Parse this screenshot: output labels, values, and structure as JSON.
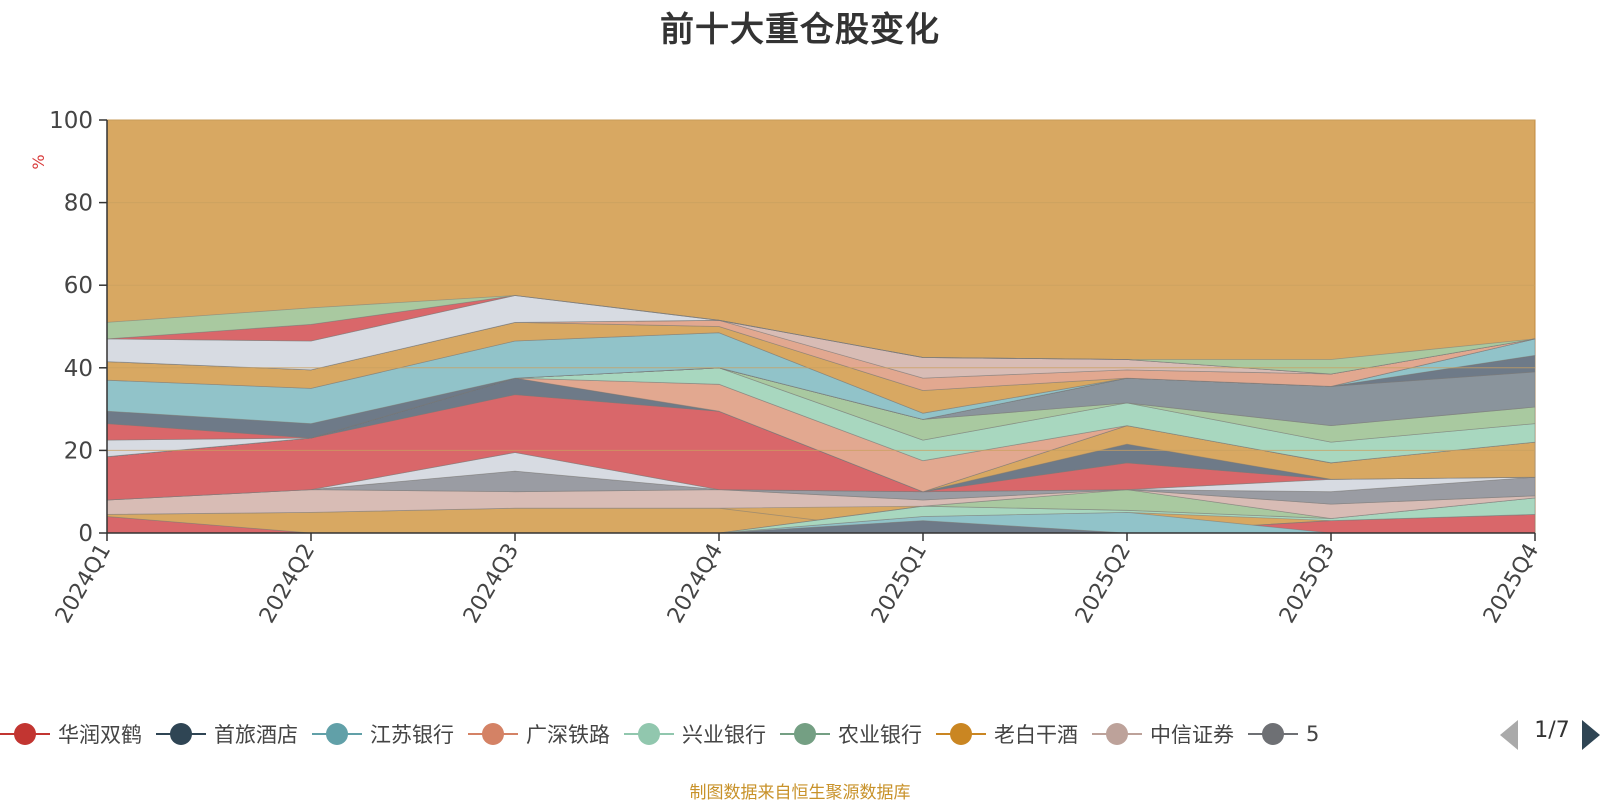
{
  "title": "前十大重仓股变化",
  "source_note": "制图数据来自恒生聚源数据库",
  "pager": {
    "text": "1/7"
  },
  "colors": {
    "background_area": "#d8a862",
    "axis": "#333333",
    "grid": "#c9a060",
    "ylabel": "#d83a3a"
  },
  "legend": [
    {
      "name": "华润双鹤",
      "color": "#c23531"
    },
    {
      "name": "首旅酒店",
      "color": "#2f4554"
    },
    {
      "name": "江苏银行",
      "color": "#61a0a8"
    },
    {
      "name": "广深铁路",
      "color": "#d48265"
    },
    {
      "name": "兴业银行",
      "color": "#91c7ae"
    },
    {
      "name": "农业银行",
      "color": "#749f83"
    },
    {
      "name": "老白干酒",
      "color": "#ca8622"
    },
    {
      "name": "中信证券",
      "color": "#bda29a"
    },
    {
      "name": "5",
      "color": "#6e7074"
    }
  ],
  "chart_data": {
    "type": "area",
    "title": "前十大重仓股变化",
    "xlabel": "",
    "ylabel": "%",
    "ylim": [
      0,
      100
    ],
    "yticks": [
      "0",
      "20",
      "40",
      "60",
      "80",
      "100"
    ],
    "categories": [
      "2024Q1",
      "2024Q2",
      "2024Q3",
      "2024Q4",
      "2025Q1",
      "2025Q2",
      "2025Q3",
      "2025Q4"
    ],
    "grid": true,
    "legend_position": "bottom",
    "bands": [
      {
        "color": "#d9676a",
        "lower": [
          0,
          0,
          0,
          0,
          0,
          0,
          0,
          0
        ],
        "upper": [
          4,
          0,
          0,
          0,
          0,
          0,
          3,
          4.5
        ]
      },
      {
        "color": "#d8a862",
        "lower": [
          4,
          0,
          0,
          0,
          0,
          0,
          3,
          4.5
        ],
        "upper": [
          4.5,
          5,
          6,
          6,
          0,
          0,
          3,
          4.5
        ]
      },
      {
        "color": "#6e7a88",
        "lower": [
          0,
          0,
          0,
          0,
          0,
          0,
          0,
          0
        ],
        "upper": [
          0,
          0,
          0,
          0,
          3,
          0,
          0,
          0
        ]
      },
      {
        "color": "#91c3c9",
        "lower": [
          0,
          0,
          0,
          0,
          3,
          0,
          0,
          0
        ],
        "upper": [
          0,
          0,
          0,
          0,
          4,
          5,
          0,
          0
        ]
      },
      {
        "color": "#a8d7bf",
        "lower": [
          0,
          0,
          0,
          0,
          4,
          5,
          3,
          4.5
        ],
        "upper": [
          0,
          0,
          0,
          0,
          6.5,
          5.5,
          3.5,
          8.5
        ]
      },
      {
        "color": "#a9c9a0",
        "lower": [
          0,
          0,
          0,
          0,
          6.5,
          5.5,
          3.5,
          8.5
        ],
        "upper": [
          0,
          0,
          0,
          0,
          6.5,
          10.5,
          3.5,
          8.5
        ]
      },
      {
        "color": "#d8bcb5",
        "lower": [
          4.5,
          5,
          6,
          6,
          6.5,
          10.5,
          3.5,
          8.5
        ],
        "upper": [
          8,
          10.5,
          10,
          10.5,
          8,
          10.5,
          7,
          9
        ]
      },
      {
        "color": "#9a9ca3",
        "lower": [
          8,
          10.5,
          10,
          10.5,
          8,
          10.5,
          7,
          9
        ],
        "upper": [
          8,
          10.5,
          15,
          10.5,
          10,
          10.5,
          10,
          13.5
        ]
      },
      {
        "color": "#d7dbe2",
        "lower": [
          8,
          10.5,
          15,
          10.5,
          10,
          10.5,
          10,
          13.5
        ],
        "upper": [
          8,
          10.5,
          19.5,
          10.5,
          10,
          10.5,
          13,
          13.5
        ]
      },
      {
        "color": "#d9676a",
        "lower": [
          8,
          10.5,
          19.5,
          10.5,
          10,
          10.5,
          13,
          13.5
        ],
        "upper": [
          18.5,
          23,
          33.5,
          29.5,
          10,
          17,
          13,
          13.5
        ]
      },
      {
        "color": "#6e7a88",
        "lower": [
          18.5,
          23,
          33.5,
          29.5,
          10,
          17,
          13,
          13.5
        ],
        "upper": [
          18.5,
          23,
          37.5,
          29.5,
          10,
          21.5,
          13,
          13.5
        ]
      },
      {
        "color": "#d8a862",
        "lower": [
          18.5,
          23,
          37.5,
          29.5,
          10,
          21.5,
          13,
          13.5
        ],
        "upper": [
          18.5,
          23,
          37.5,
          29.5,
          10,
          26,
          17,
          22
        ]
      },
      {
        "color": "#91c3c9",
        "lower": [
          18.5,
          23,
          37.5,
          29.5,
          10,
          26,
          17,
          22
        ],
        "upper": [
          18.5,
          23,
          37.5,
          29.5,
          10,
          26,
          17,
          22
        ]
      },
      {
        "color": "#e2a890",
        "lower": [
          18.5,
          23,
          37.5,
          29.5,
          10,
          26,
          17,
          22
        ],
        "upper": [
          18.5,
          23,
          37.5,
          36,
          17.5,
          26,
          17,
          22
        ]
      },
      {
        "color": "#a8d7bf",
        "lower": [
          18.5,
          23,
          37.5,
          36,
          17.5,
          26,
          17,
          22
        ],
        "upper": [
          18.5,
          23,
          37.5,
          40,
          22.5,
          31.5,
          22,
          26.5
        ]
      },
      {
        "color": "#a9c9a0",
        "lower": [
          18.5,
          23,
          37.5,
          40,
          22.5,
          31.5,
          22,
          26.5
        ],
        "upper": [
          18.5,
          23,
          37.5,
          40,
          27.5,
          31.5,
          26,
          30.5
        ]
      },
      {
        "color": "#8a949c",
        "lower": [
          18.5,
          23,
          37.5,
          40,
          27.5,
          31.5,
          26,
          30.5
        ],
        "upper": [
          18.5,
          23,
          37.5,
          40,
          27.5,
          37.5,
          35.5,
          39
        ]
      },
      {
        "color": "#6e7a88",
        "lower": [
          18.5,
          23,
          37.5,
          40,
          27.5,
          37.5,
          35.5,
          39
        ],
        "upper": [
          18.5,
          23,
          37.5,
          40,
          27.5,
          37.5,
          35.5,
          43
        ]
      },
      {
        "color": "#d7dbe2",
        "lower": [
          18.5,
          23,
          37.5,
          40,
          27.5,
          37.5,
          35.5,
          43
        ],
        "upper": [
          22.5,
          23,
          37.5,
          40,
          27.5,
          37.5,
          35.5,
          43
        ]
      },
      {
        "color": "#d9676a",
        "lower": [
          22.5,
          23,
          37.5,
          40,
          27.5,
          37.5,
          35.5,
          43
        ],
        "upper": [
          26.5,
          23,
          37.5,
          40,
          27.5,
          37.5,
          35.5,
          43
        ]
      },
      {
        "color": "#6e7a88",
        "lower": [
          26.5,
          23,
          37.5,
          40,
          27.5,
          37.5,
          35.5,
          43
        ],
        "upper": [
          29.5,
          26.5,
          37.5,
          40,
          27.5,
          37.5,
          35.5,
          43
        ]
      },
      {
        "color": "#91c3c9",
        "lower": [
          29.5,
          26.5,
          37.5,
          40,
          27.5,
          37.5,
          35.5,
          43
        ],
        "upper": [
          37,
          35,
          46.5,
          48.5,
          29,
          37.5,
          35.5,
          47
        ]
      },
      {
        "color": "#d8a862",
        "lower": [
          37,
          35,
          46.5,
          48.5,
          29,
          37.5,
          35.5,
          47
        ],
        "upper": [
          41.5,
          39.5,
          51,
          50,
          34.5,
          37.5,
          35.5,
          47
        ]
      },
      {
        "color": "#e2a890",
        "lower": [
          41.5,
          39.5,
          51,
          50,
          34.5,
          37.5,
          35.5,
          47
        ],
        "upper": [
          41.5,
          39.5,
          51,
          51.5,
          37.5,
          39.5,
          38.5,
          47
        ]
      },
      {
        "color": "#d8bcb5",
        "lower": [
          41.5,
          39.5,
          51,
          51.5,
          37.5,
          39.5,
          38.5,
          47
        ],
        "upper": [
          41.5,
          39.5,
          51,
          51.5,
          42.5,
          42,
          38.5,
          47
        ]
      },
      {
        "color": "#d7dbe2",
        "lower": [
          41.5,
          39.5,
          51,
          51.5,
          42.5,
          42,
          38.5,
          47
        ],
        "upper": [
          47,
          46.5,
          57.5,
          51.5,
          42.5,
          42,
          38.5,
          47
        ]
      },
      {
        "color": "#d9676a",
        "lower": [
          47,
          46.5,
          57.5,
          51.5,
          42.5,
          42,
          38.5,
          47
        ],
        "upper": [
          47,
          50.5,
          57.5,
          51.5,
          42.5,
          42,
          38.5,
          47
        ]
      },
      {
        "color": "#a9c9a0",
        "lower": [
          47,
          50.5,
          57.5,
          51.5,
          42.5,
          42,
          38.5,
          47
        ],
        "upper": [
          51,
          54.5,
          57.5,
          51.5,
          42.5,
          42,
          42,
          47
        ]
      }
    ]
  }
}
